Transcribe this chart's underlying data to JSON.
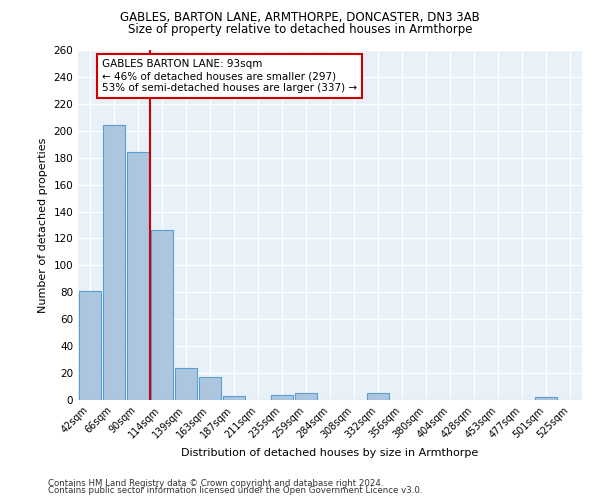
{
  "title1": "GABLES, BARTON LANE, ARMTHORPE, DONCASTER, DN3 3AB",
  "title2": "Size of property relative to detached houses in Armthorpe",
  "xlabel": "Distribution of detached houses by size in Armthorpe",
  "ylabel": "Number of detached properties",
  "categories": [
    "42sqm",
    "66sqm",
    "90sqm",
    "114sqm",
    "139sqm",
    "163sqm",
    "187sqm",
    "211sqm",
    "235sqm",
    "259sqm",
    "284sqm",
    "308sqm",
    "332sqm",
    "356sqm",
    "380sqm",
    "404sqm",
    "428sqm",
    "453sqm",
    "477sqm",
    "501sqm",
    "525sqm"
  ],
  "values": [
    81,
    204,
    184,
    126,
    24,
    17,
    3,
    0,
    4,
    5,
    0,
    0,
    5,
    0,
    0,
    0,
    0,
    0,
    0,
    2,
    0
  ],
  "bar_color": "#adc6e0",
  "bar_edge_color": "#5a9fd4",
  "background_color": "#e8f0f8",
  "grid_color": "#ffffff",
  "annotation_text": "GABLES BARTON LANE: 93sqm\n← 46% of detached houses are smaller (297)\n53% of semi-detached houses are larger (337) →",
  "annotation_box_color": "#ffffff",
  "annotation_box_edge": "#cc0000",
  "redline_color": "#cc0000",
  "footer1": "Contains HM Land Registry data © Crown copyright and database right 2024.",
  "footer2": "Contains public sector information licensed under the Open Government Licence v3.0.",
  "ylim": [
    0,
    260
  ],
  "yticks": [
    0,
    20,
    40,
    60,
    80,
    100,
    120,
    140,
    160,
    180,
    200,
    220,
    240,
    260
  ]
}
